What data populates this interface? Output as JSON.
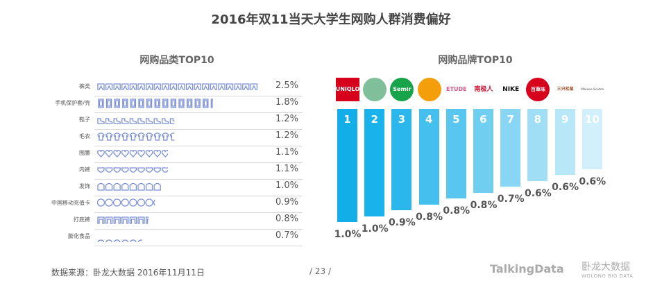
{
  "title": "2016年双11当天大学生网购人群消费偏好",
  "left_chart_title": "网购品类TOP10",
  "right_chart_title": "网购品牌TOP10",
  "chart_data": [
    {
      "type": "bar",
      "title": "网购品类TOP10",
      "categories": [
        "裤类",
        "手机保护套/壳",
        "鞋子",
        "毛衣",
        "围腰",
        "内裤",
        "发饰",
        "中国移动充值卡",
        "打底裤",
        "膨化食品"
      ],
      "values": [
        2.5,
        1.8,
        1.2,
        1.2,
        1.1,
        1.1,
        1.0,
        0.9,
        0.8,
        0.7
      ],
      "value_labels": [
        "2.5%",
        "1.8%",
        "1.2%",
        "1.2%",
        "1.1%",
        "1.1%",
        "1.0%",
        "0.9%",
        "0.8%",
        "0.7%"
      ],
      "icon_color": "#7b8fd6"
    },
    {
      "type": "bar",
      "title": "网购品牌TOP10",
      "categories": [
        "1",
        "2",
        "3",
        "4",
        "5",
        "6",
        "7",
        "8",
        "9",
        "10"
      ],
      "brands": [
        "UNIQLO",
        "",
        "Semir",
        "",
        "ETUDE",
        "南极人",
        "NIKE",
        "百草味",
        "三只松鼠",
        "Maison Scotch"
      ],
      "values": [
        1.0,
        1.0,
        0.9,
        0.8,
        0.8,
        0.8,
        0.7,
        0.6,
        0.6,
        0.6
      ],
      "value_labels": [
        "1.0%",
        "1.0%",
        "0.9%",
        "0.8%",
        "0.8%",
        "0.8%",
        "0.7%",
        "0.6%",
        "0.6%",
        "0.6%"
      ],
      "bar_colors": [
        "#12aee8",
        "#1ab2ea",
        "#2bb7eb",
        "#44bfee",
        "#58c6ef",
        "#70cef1",
        "#88d6f4",
        "#a0def6",
        "#b8e7f8",
        "#d2f0fb"
      ]
    }
  ],
  "footer": {
    "source": "数据来源：卧龙大数据  2016年11月11日",
    "page": "/ 23 /",
    "logo_talkingdata": "TalkingData",
    "logo_wolong": "卧龙大数据",
    "logo_wolong_en": "WOLONG BIG DATA"
  }
}
